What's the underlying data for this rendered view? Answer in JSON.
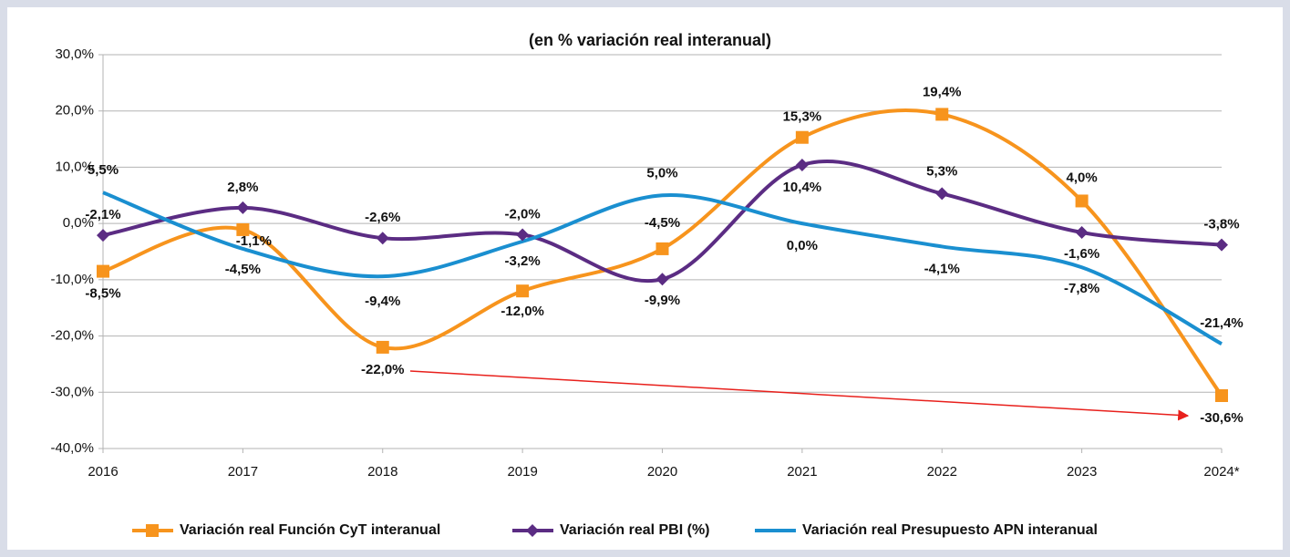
{
  "chart_data": {
    "type": "line",
    "title": "(en % variación real interanual)",
    "categories": [
      "2016",
      "2017",
      "2018",
      "2019",
      "2020",
      "2021",
      "2022",
      "2023",
      "2024*"
    ],
    "ylim": [
      -40,
      30
    ],
    "yticks": [
      {
        "value": -40,
        "label": "-40,0%"
      },
      {
        "value": -30,
        "label": "-30,0%"
      },
      {
        "value": -20,
        "label": "-20,0%"
      },
      {
        "value": -10,
        "label": "-10,0%"
      },
      {
        "value": 0,
        "label": "0,0%"
      },
      {
        "value": 10,
        "label": "10,0%"
      },
      {
        "value": 20,
        "label": "20,0%"
      },
      {
        "value": 30,
        "label": "30,0%"
      }
    ],
    "grid": true,
    "legend": "bottom",
    "series": [
      {
        "name": "Variación real Función CyT interanual",
        "color": "#f7941d",
        "marker": "square",
        "values": [
          -8.5,
          -1.1,
          -22.0,
          -12.0,
          -4.5,
          15.3,
          19.4,
          4.0,
          -30.6
        ],
        "value_labels": [
          "-8,5%",
          "-1,1%",
          "-22,0%",
          "-12,0%",
          "-4,5%",
          "15,3%",
          "19,4%",
          "4,0%",
          "-30,6%"
        ]
      },
      {
        "name": "Variación real PBI (%)",
        "color": "#5b2c83",
        "marker": "diamond",
        "values": [
          -2.1,
          2.8,
          -2.6,
          -2.0,
          -9.9,
          10.4,
          5.3,
          -1.6,
          -3.8
        ],
        "value_labels": [
          "-2,1%",
          "2,8%",
          "-2,6%",
          "-2,0%",
          "-9,9%",
          "10,4%",
          "5,3%",
          "-1,6%",
          "-3,8%"
        ]
      },
      {
        "name": "Variación real Presupuesto APN interanual",
        "color": "#1a8fd0",
        "marker": "none",
        "values": [
          5.5,
          -4.5,
          -9.4,
          -3.2,
          5.0,
          0.0,
          -4.1,
          -7.8,
          -21.4
        ],
        "value_labels": [
          "5,5%",
          "-4,5%",
          "-9,4%",
          "-3,2%",
          "5,0%",
          "0,0%",
          "-4,1%",
          "-7,8%",
          "-21,4%"
        ]
      }
    ]
  }
}
